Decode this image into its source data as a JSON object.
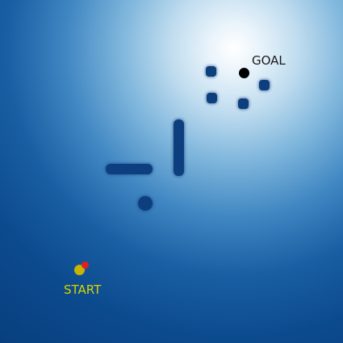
{
  "labels": {
    "goal": "GOAL",
    "start": "START"
  },
  "colors": {
    "goal_marker": "#000000",
    "start_marker": "#c8b400",
    "agent_marker": "#e02020",
    "obstacle": "#0d3f7e",
    "start_label": "#d4d400",
    "goal_label": "#1b1b1b"
  }
}
